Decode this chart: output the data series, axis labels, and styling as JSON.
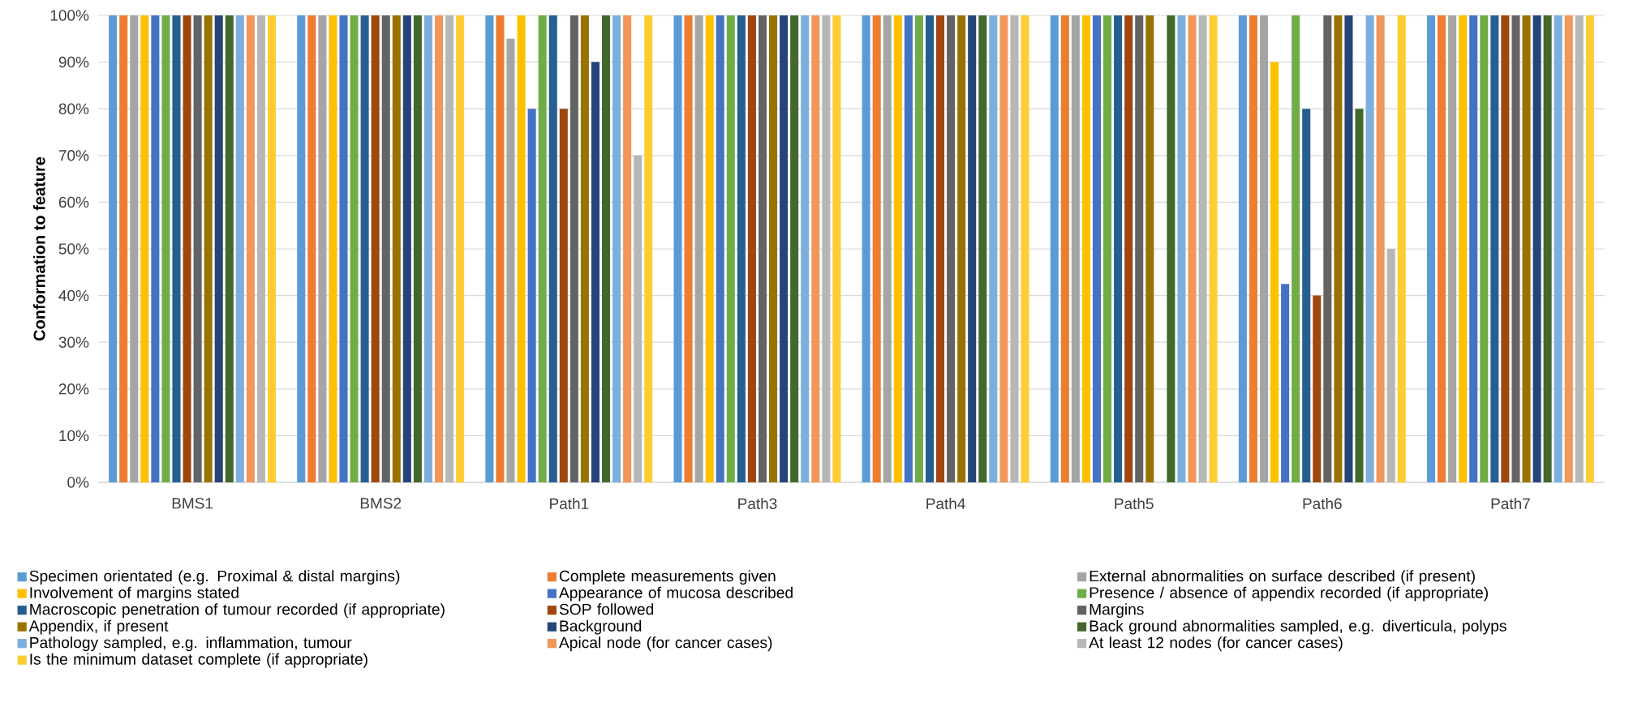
{
  "chart_data": {
    "type": "bar",
    "ylabel": "Conformation to feature",
    "categories": [
      "BMS1",
      "BMS2",
      "Path1",
      "Path3",
      "Path4",
      "Path5",
      "Path6",
      "Path7"
    ],
    "ylim": [
      0,
      100
    ],
    "yticks": [
      {
        "value": 0,
        "label": "0%"
      },
      {
        "value": 10,
        "label": "10%"
      },
      {
        "value": 20,
        "label": "20%"
      },
      {
        "value": 30,
        "label": "30%"
      },
      {
        "value": 40,
        "label": "40%"
      },
      {
        "value": 50,
        "label": "50%"
      },
      {
        "value": 60,
        "label": "60%"
      },
      {
        "value": 70,
        "label": "70%"
      },
      {
        "value": 80,
        "label": "80%"
      },
      {
        "value": 90,
        "label": "90%"
      },
      {
        "value": 100,
        "label": "100%"
      }
    ],
    "grid": "y",
    "legend": "bottom",
    "series": [
      {
        "name": "Specimen orientated (e.g. Proximal & distal margins)",
        "color": "#5b9bd5",
        "values": [
          100,
          100,
          100,
          100,
          100,
          100,
          100,
          100
        ]
      },
      {
        "name": "Complete measurements given",
        "color": "#ed7d31",
        "values": [
          100,
          100,
          100,
          100,
          100,
          100,
          100,
          100
        ]
      },
      {
        "name": "External abnormalities on surface described (if present)",
        "color": "#a5a5a5",
        "values": [
          100,
          100,
          95,
          100,
          100,
          100,
          100,
          100
        ]
      },
      {
        "name": "Involvement of margins stated",
        "color": "#ffc000",
        "values": [
          100,
          100,
          100,
          100,
          100,
          100,
          90,
          100
        ]
      },
      {
        "name": "Appearance of mucosa described",
        "color": "#4472c4",
        "values": [
          100,
          100,
          80,
          100,
          100,
          100,
          42.5,
          100
        ]
      },
      {
        "name": "Presence / absence of appendix recorded (if appropriate)",
        "color": "#70ad47",
        "values": [
          100,
          100,
          100,
          100,
          100,
          100,
          100,
          100
        ]
      },
      {
        "name": "Macroscopic penetration of tumour recorded (if appropriate)",
        "color": "#255e91",
        "values": [
          100,
          100,
          100,
          100,
          100,
          100,
          80,
          100
        ]
      },
      {
        "name": "SOP followed",
        "color": "#9e480e",
        "values": [
          100,
          100,
          80,
          100,
          100,
          100,
          40,
          100
        ]
      },
      {
        "name": "Margins",
        "color": "#636363",
        "values": [
          100,
          100,
          100,
          100,
          100,
          100,
          100,
          100
        ]
      },
      {
        "name": "Appendix, if present",
        "color": "#997300",
        "values": [
          100,
          100,
          100,
          100,
          100,
          100,
          100,
          100
        ]
      },
      {
        "name": "Background",
        "color": "#264478",
        "values": [
          100,
          100,
          90,
          100,
          100,
          0,
          100,
          100
        ]
      },
      {
        "name": "Back ground abnormalities sampled, e.g. diverticula, polyps",
        "color": "#43682b",
        "values": [
          100,
          100,
          100,
          100,
          100,
          100,
          80,
          100
        ]
      },
      {
        "name": "Pathology sampled, e.g. inflammation, tumour",
        "color": "#7cafdd",
        "values": [
          100,
          100,
          100,
          100,
          100,
          100,
          100,
          100
        ]
      },
      {
        "name": "Apical node (for cancer cases)",
        "color": "#f1975a",
        "values": [
          100,
          100,
          100,
          100,
          100,
          100,
          100,
          100
        ]
      },
      {
        "name": "At least 12 nodes (for cancer cases)",
        "color": "#b7b7b7",
        "values": [
          100,
          100,
          70,
          100,
          100,
          100,
          50,
          100
        ]
      },
      {
        "name": "Is the minimum dataset complete (if appropriate)",
        "color": "#ffcd33",
        "values": [
          100,
          100,
          100,
          100,
          100,
          100,
          100,
          100
        ]
      }
    ]
  }
}
